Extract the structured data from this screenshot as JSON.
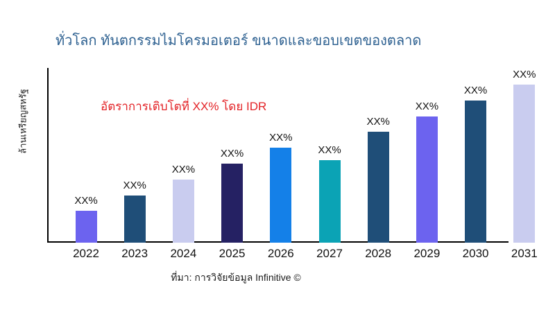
{
  "title": "ทั่วโลก ทันตกรรมไมโครมอเตอร์ ขนาดและขอบเขตของตลาด",
  "annotation": "อัตราการเติบโตที่ XX% โดย IDR",
  "y_axis_label": "ล้านเหรียญสหรัฐ",
  "source": "ที่มา: การวิจัยข้อมูล Infinitive ©",
  "colors": {
    "title": "#2E6191",
    "annotation": "#E32226",
    "axis": "#000000",
    "purple": "#6C63EF",
    "dark_steel_blue": "#1F4E78",
    "lavender": "#C9CCEF",
    "navy": "#252163",
    "bright_blue": "#1480E8",
    "teal": "#0BA3B5"
  },
  "chart_data": {
    "type": "bar",
    "title": "ทั่วโลก ทันตกรรมไมโครมอเตอร์ ขนาดและขอบเขตของตลาด",
    "xlabel": "",
    "ylabel": "ล้านเหรียญสหรัฐ",
    "categories": [
      "2022",
      "2023",
      "2024",
      "2025",
      "2026",
      "2027",
      "2028",
      "2029",
      "2030",
      "2031"
    ],
    "values": [
      20,
      30,
      40,
      50,
      60,
      52,
      70,
      80,
      90,
      100
    ],
    "values_note": "relative bar heights in percent of tallest bar (2031); numeric values not printed on chart",
    "bar_labels": [
      "XX%",
      "XX%",
      "XX%",
      "XX%",
      "XX%",
      "XX%",
      "XX%",
      "XX%",
      "XX%",
      "XX%"
    ],
    "bar_colors": [
      "#6C63EF",
      "#1F4E78",
      "#C9CCEF",
      "#252163",
      "#1480E8",
      "#0BA3B5",
      "#1F4E78",
      "#6C63EF",
      "#1F4E78",
      "#C9CCEF"
    ],
    "annotation": "อัตราการเติบโตที่ XX% โดย IDR",
    "grid": false,
    "legend": "none",
    "y_ticks_visible": false
  }
}
